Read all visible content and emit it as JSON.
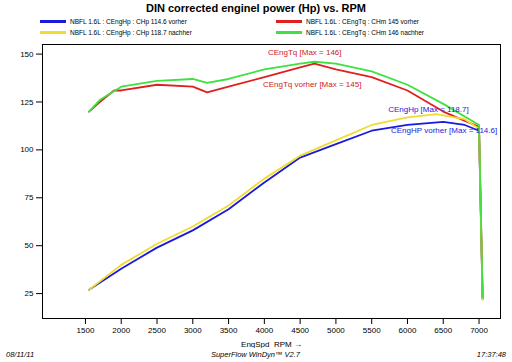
{
  "chart_data": {
    "type": "line",
    "title": "DIN corrected enginel power (Hp) vs. RPM",
    "x_label": "EngSpd  RPM",
    "xlim": [
      900,
      7300
    ],
    "xticks": [
      1500,
      2000,
      2500,
      3000,
      3500,
      4000,
      4500,
      5000,
      5500,
      6000,
      6500,
      7000
    ],
    "ylim": [
      12,
      155
    ],
    "yticks": [
      25,
      50,
      75,
      100,
      125,
      150
    ],
    "grid": false,
    "legend": "top",
    "series": [
      {
        "name": "NBFL 1.6L : CEngHp : CHp 114.6 vorher",
        "color": "#1a1adc",
        "x": [
          1550,
          2000,
          2500,
          3000,
          3500,
          4000,
          4500,
          5000,
          5500,
          6000,
          6500,
          6800,
          7000,
          7050
        ],
        "values": [
          27,
          38,
          49,
          58,
          69,
          83,
          96,
          103,
          110,
          113,
          114.6,
          113,
          110,
          22
        ]
      },
      {
        "name": "NBFL 1.6L : CEngTq : CHm 145 vorher",
        "color": "#e02020",
        "x": [
          1550,
          1700,
          1900,
          2000,
          2500,
          3000,
          3200,
          3500,
          4000,
          4500,
          4700,
          5000,
          5500,
          6000,
          6500,
          7000,
          7050
        ],
        "values": [
          120,
          125,
          131,
          131,
          134,
          133,
          130,
          133,
          138,
          143,
          145,
          142,
          138,
          131,
          120,
          112,
          23
        ]
      },
      {
        "name": "NBFL 1.6L : CEngHp : CHp 118.7 nachher",
        "color": "#f0dc30",
        "x": [
          1550,
          2000,
          2500,
          3000,
          3500,
          4000,
          4500,
          5000,
          5500,
          6000,
          6400,
          6800,
          7000,
          7050
        ],
        "values": [
          27,
          40,
          51,
          60,
          71,
          85,
          97,
          105,
          113,
          117,
          118.7,
          116,
          111,
          22
        ]
      },
      {
        "name": "NBFL 1.6L : CEngTq : CHm 146 nachher",
        "color": "#40e040",
        "x": [
          1550,
          1700,
          2000,
          2500,
          3000,
          3200,
          3500,
          4000,
          4500,
          4700,
          5000,
          5500,
          6000,
          6500,
          7000,
          7050
        ],
        "values": [
          120,
          126,
          133,
          136,
          137,
          135,
          137,
          142,
          145,
          146,
          145,
          141,
          134,
          124,
          113,
          23
        ]
      }
    ],
    "annotations": [
      {
        "text": "CEngTq [Max = 146]",
        "x": 4050,
        "y": 151,
        "color": "#d02020"
      },
      {
        "text": "CEngTq vorher [Max = 145]",
        "x": 3980,
        "y": 134,
        "color": "#d02020"
      },
      {
        "text": "CEngHp [Max = 118.7]",
        "x": 5730,
        "y": 121,
        "color": "#1a1adc"
      },
      {
        "text": "CEngHP vorher [Max = 114.6]",
        "x": 5770,
        "y": 110,
        "color": "#1a1adc"
      }
    ],
    "footer": {
      "left": "08/11/11",
      "center": "SuperFlow WinDyn™ V2.7",
      "right": "17:37:48"
    }
  }
}
